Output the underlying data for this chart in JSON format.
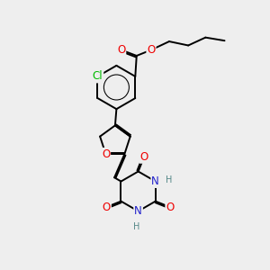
{
  "bg_color": "#eeeeee",
  "bond_color": "#000000",
  "bond_width": 1.4,
  "dbo": 0.055,
  "atom_colors": {
    "O": "#ee0000",
    "N": "#2222cc",
    "Cl": "#00bb00",
    "H": "#558888",
    "C": "#000000"
  },
  "fs": 8.5
}
